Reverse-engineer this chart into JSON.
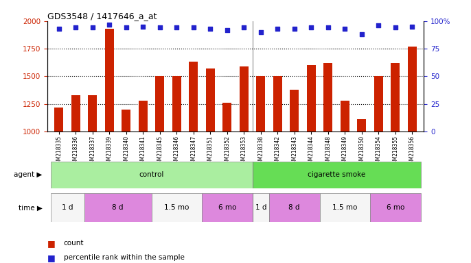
{
  "title": "GDS3548 / 1417646_a_at",
  "samples": [
    "GSM218335",
    "GSM218336",
    "GSM218337",
    "GSM218339",
    "GSM218340",
    "GSM218341",
    "GSM218345",
    "GSM218346",
    "GSM218347",
    "GSM218351",
    "GSM218352",
    "GSM218353",
    "GSM218338",
    "GSM218342",
    "GSM218343",
    "GSM218344",
    "GSM218348",
    "GSM218349",
    "GSM218350",
    "GSM218354",
    "GSM218355",
    "GSM218356"
  ],
  "counts": [
    1220,
    1330,
    1330,
    1930,
    1200,
    1280,
    1500,
    1500,
    1630,
    1570,
    1260,
    1590,
    1500,
    1500,
    1380,
    1600,
    1620,
    1280,
    1110,
    1500,
    1620,
    1770
  ],
  "percentiles": [
    93,
    94,
    94,
    97,
    94,
    95,
    94,
    94,
    94,
    93,
    92,
    94,
    90,
    93,
    93,
    94,
    94,
    93,
    88,
    96,
    94,
    95
  ],
  "bar_color": "#cc2200",
  "dot_color": "#2222cc",
  "ylim_left": [
    1000,
    2000
  ],
  "ylim_right": [
    0,
    100
  ],
  "yticks_left": [
    1000,
    1250,
    1500,
    1750,
    2000
  ],
  "yticks_right": [
    0,
    25,
    50,
    75,
    100
  ],
  "agent_groups": [
    {
      "label": "control",
      "start": 0,
      "end": 12,
      "color": "#aaeea0"
    },
    {
      "label": "cigarette smoke",
      "start": 12,
      "end": 22,
      "color": "#66dd55"
    }
  ],
  "time_groups": [
    {
      "label": "1 d",
      "start": 0,
      "end": 2,
      "color": "#f5f5f5"
    },
    {
      "label": "8 d",
      "start": 2,
      "end": 6,
      "color": "#dd88dd"
    },
    {
      "label": "1.5 mo",
      "start": 6,
      "end": 9,
      "color": "#f5f5f5"
    },
    {
      "label": "6 mo",
      "start": 9,
      "end": 12,
      "color": "#dd88dd"
    },
    {
      "label": "1 d",
      "start": 12,
      "end": 13,
      "color": "#f5f5f5"
    },
    {
      "label": "8 d",
      "start": 13,
      "end": 16,
      "color": "#dd88dd"
    },
    {
      "label": "1.5 mo",
      "start": 16,
      "end": 19,
      "color": "#f5f5f5"
    },
    {
      "label": "6 mo",
      "start": 19,
      "end": 22,
      "color": "#dd88dd"
    }
  ],
  "background_color": "#ffffff",
  "plot_bg": "#ffffff",
  "grid_color": "#000000",
  "separator_color": "#888888"
}
